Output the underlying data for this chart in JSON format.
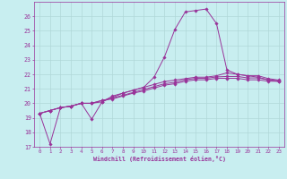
{
  "background_color": "#c8eef0",
  "grid_color": "#b0d8d8",
  "line_color": "#993399",
  "xlabel": "Windchill (Refroidissement éolien,°C)",
  "xlim": [
    -0.5,
    23.5
  ],
  "ylim": [
    17,
    27
  ],
  "yticks": [
    17,
    18,
    19,
    20,
    21,
    22,
    23,
    24,
    25,
    26
  ],
  "xticks": [
    0,
    1,
    2,
    3,
    4,
    5,
    6,
    7,
    8,
    9,
    10,
    11,
    12,
    13,
    14,
    15,
    16,
    17,
    18,
    19,
    20,
    21,
    22,
    23
  ],
  "series": [
    [
      19.3,
      17.2,
      19.7,
      19.8,
      20.0,
      18.9,
      20.1,
      20.5,
      20.7,
      20.9,
      21.1,
      21.8,
      23.2,
      25.1,
      26.3,
      26.4,
      26.5,
      25.5,
      22.3,
      22.0,
      21.9,
      21.8,
      21.6,
      21.5
    ],
    [
      19.3,
      19.5,
      19.7,
      19.8,
      20.0,
      20.0,
      20.1,
      20.4,
      20.7,
      20.9,
      21.1,
      21.3,
      21.5,
      21.6,
      21.7,
      21.8,
      21.8,
      21.9,
      22.1,
      22.0,
      21.9,
      21.9,
      21.7,
      21.6
    ],
    [
      19.3,
      19.5,
      19.7,
      19.8,
      20.0,
      20.0,
      20.2,
      20.35,
      20.55,
      20.75,
      20.95,
      21.15,
      21.35,
      21.45,
      21.62,
      21.72,
      21.72,
      21.82,
      21.85,
      21.85,
      21.75,
      21.75,
      21.62,
      21.55
    ],
    [
      19.3,
      19.5,
      19.7,
      19.8,
      20.0,
      20.0,
      20.2,
      20.3,
      20.5,
      20.7,
      20.85,
      21.05,
      21.25,
      21.35,
      21.52,
      21.62,
      21.62,
      21.72,
      21.72,
      21.72,
      21.62,
      21.62,
      21.52,
      21.52
    ]
  ],
  "marker_every": [
    1,
    3,
    4,
    5
  ]
}
